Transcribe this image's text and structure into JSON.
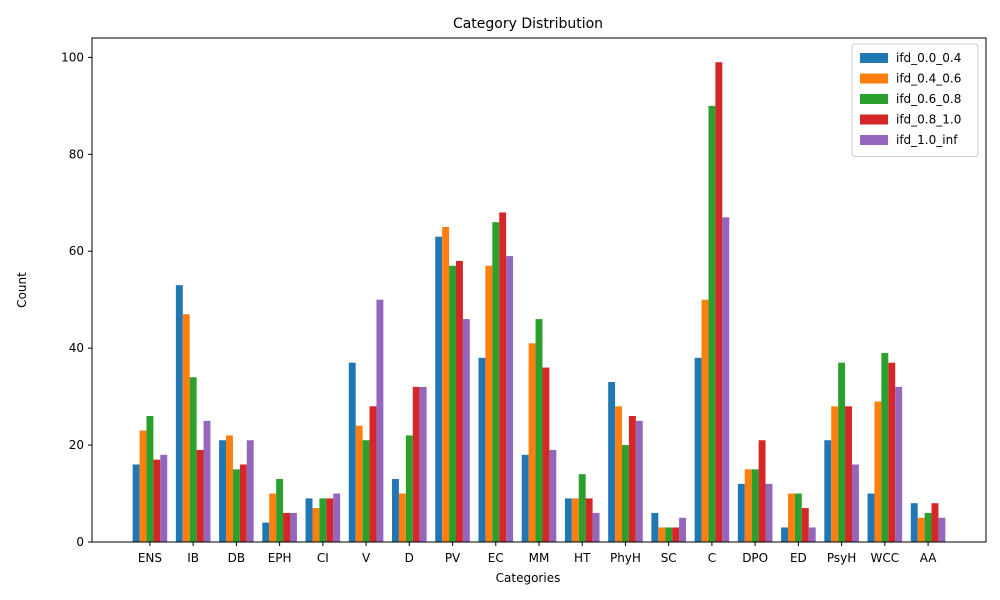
{
  "chart_data": {
    "type": "bar",
    "title": "Category Distribution",
    "xlabel": "Categories",
    "ylabel": "Count",
    "ylim": [
      0,
      104
    ],
    "yticks": [
      0,
      20,
      40,
      60,
      80,
      100
    ],
    "grid": false,
    "legend_position": "top-right",
    "categories": [
      "ENS",
      "IB",
      "DB",
      "EPH",
      "CI",
      "V",
      "D",
      "PV",
      "EC",
      "MM",
      "HT",
      "PhyH",
      "SC",
      "C",
      "DPO",
      "ED",
      "PsyH",
      "WCC",
      "AA"
    ],
    "series": [
      {
        "name": "ifd_0.0_0.4",
        "color": "#1f77b4",
        "values": [
          16,
          53,
          21,
          4,
          9,
          37,
          13,
          63,
          38,
          18,
          9,
          33,
          6,
          38,
          12,
          3,
          21,
          10,
          8
        ]
      },
      {
        "name": "ifd_0.4_0.6",
        "color": "#ff7f0e",
        "values": [
          23,
          47,
          22,
          10,
          7,
          24,
          10,
          65,
          57,
          41,
          9,
          28,
          3,
          50,
          15,
          10,
          28,
          29,
          5
        ]
      },
      {
        "name": "ifd_0.6_0.8",
        "color": "#2ca02c",
        "values": [
          26,
          34,
          15,
          13,
          9,
          21,
          22,
          57,
          66,
          46,
          14,
          20,
          3,
          90,
          15,
          10,
          37,
          39,
          6
        ]
      },
      {
        "name": "ifd_0.8_1.0",
        "color": "#d62728",
        "values": [
          17,
          19,
          16,
          6,
          9,
          28,
          32,
          58,
          68,
          36,
          9,
          26,
          3,
          99,
          21,
          7,
          28,
          37,
          8
        ]
      },
      {
        "name": "ifd_1.0_inf",
        "color": "#9467bd",
        "values": [
          18,
          25,
          21,
          6,
          10,
          50,
          32,
          46,
          59,
          19,
          6,
          25,
          5,
          67,
          12,
          3,
          16,
          32,
          5
        ]
      }
    ]
  }
}
